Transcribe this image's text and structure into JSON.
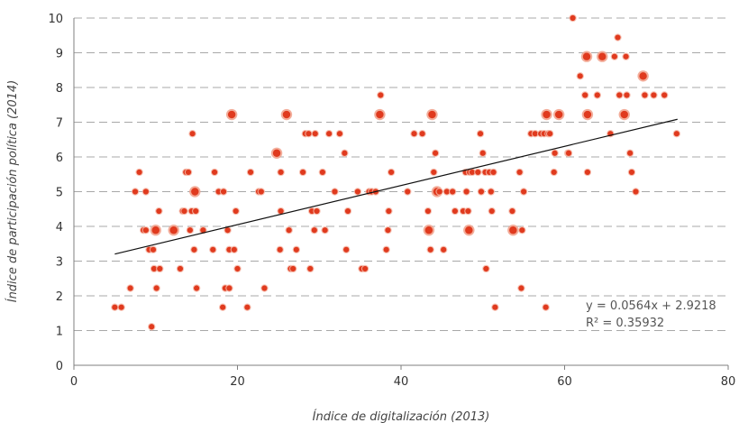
{
  "chart_data": {
    "type": "scatter",
    "xlabel": "Índice de digitalización (2013)",
    "ylabel": "Índice de participación política (2014)",
    "xlim": [
      0,
      80
    ],
    "ylim": [
      0,
      10
    ],
    "x_ticks": [
      "0",
      "20",
      "40",
      "60",
      "80"
    ],
    "y_ticks": [
      "0",
      "1",
      "2",
      "3",
      "4",
      "5",
      "6",
      "7",
      "8",
      "9",
      "10"
    ],
    "grid": "horizontal dashed",
    "marker_color": "#e03a1e",
    "trendline": {
      "slope": 0.0564,
      "intercept": 2.9218,
      "x_range": [
        5,
        73.8
      ],
      "equation": "y = 0.0564x + 2.9218",
      "r2": "R² = 0.35932"
    },
    "points": [
      {
        "x": 5,
        "y": 1.67
      },
      {
        "x": 5.8,
        "y": 1.67
      },
      {
        "x": 6.9,
        "y": 2.22
      },
      {
        "x": 7.5,
        "y": 5
      },
      {
        "x": 8,
        "y": 5.56
      },
      {
        "x": 8.5,
        "y": 3.89
      },
      {
        "x": 8.8,
        "y": 3.89
      },
      {
        "x": 8.8,
        "y": 5
      },
      {
        "x": 9.2,
        "y": 3.33
      },
      {
        "x": 9.5,
        "y": 1.11
      },
      {
        "x": 9.7,
        "y": 3.33
      },
      {
        "x": 9.8,
        "y": 2.78
      },
      {
        "x": 10,
        "y": 3.89
      },
      {
        "x": 10.1,
        "y": 2.22
      },
      {
        "x": 10.4,
        "y": 4.44
      },
      {
        "x": 10.5,
        "y": 2.78
      },
      {
        "x": 12.2,
        "y": 3.89
      },
      {
        "x": 13,
        "y": 2.78
      },
      {
        "x": 13.3,
        "y": 4.44
      },
      {
        "x": 13.5,
        "y": 4.44
      },
      {
        "x": 13.7,
        "y": 5.56
      },
      {
        "x": 14,
        "y": 5.56
      },
      {
        "x": 14.2,
        "y": 3.89
      },
      {
        "x": 14.4,
        "y": 4.44
      },
      {
        "x": 14.5,
        "y": 6.67
      },
      {
        "x": 14.7,
        "y": 3.33
      },
      {
        "x": 14.8,
        "y": 5
      },
      {
        "x": 14.9,
        "y": 4.44
      },
      {
        "x": 15,
        "y": 2.22
      },
      {
        "x": 15.8,
        "y": 3.89
      },
      {
        "x": 17,
        "y": 3.33
      },
      {
        "x": 17.2,
        "y": 5.56
      },
      {
        "x": 17.7,
        "y": 5
      },
      {
        "x": 18.2,
        "y": 1.67
      },
      {
        "x": 18.3,
        "y": 5
      },
      {
        "x": 18.5,
        "y": 2.22
      },
      {
        "x": 18.8,
        "y": 3.89
      },
      {
        "x": 19,
        "y": 2.22
      },
      {
        "x": 19,
        "y": 3.33
      },
      {
        "x": 19.3,
        "y": 7.22
      },
      {
        "x": 19.6,
        "y": 3.33
      },
      {
        "x": 19.8,
        "y": 4.44
      },
      {
        "x": 20,
        "y": 2.78
      },
      {
        "x": 21.2,
        "y": 1.67
      },
      {
        "x": 21.6,
        "y": 5.56
      },
      {
        "x": 22.6,
        "y": 5
      },
      {
        "x": 22.9,
        "y": 5
      },
      {
        "x": 23.3,
        "y": 2.22
      },
      {
        "x": 24.8,
        "y": 6.11
      },
      {
        "x": 25.2,
        "y": 3.33
      },
      {
        "x": 25.3,
        "y": 4.44
      },
      {
        "x": 25.3,
        "y": 5.56
      },
      {
        "x": 26,
        "y": 7.22
      },
      {
        "x": 26.3,
        "y": 3.89
      },
      {
        "x": 26.5,
        "y": 2.78
      },
      {
        "x": 26.8,
        "y": 2.78
      },
      {
        "x": 27.2,
        "y": 3.33
      },
      {
        "x": 28,
        "y": 5.56
      },
      {
        "x": 28.3,
        "y": 6.67
      },
      {
        "x": 28.7,
        "y": 6.67
      },
      {
        "x": 28.9,
        "y": 2.78
      },
      {
        "x": 29.1,
        "y": 4.44
      },
      {
        "x": 29.4,
        "y": 3.89
      },
      {
        "x": 29.5,
        "y": 6.67
      },
      {
        "x": 29.7,
        "y": 4.44
      },
      {
        "x": 30.4,
        "y": 5.56
      },
      {
        "x": 30.7,
        "y": 3.89
      },
      {
        "x": 31.2,
        "y": 6.67
      },
      {
        "x": 31.9,
        "y": 5
      },
      {
        "x": 32.5,
        "y": 6.67
      },
      {
        "x": 33.1,
        "y": 6.11
      },
      {
        "x": 33.3,
        "y": 3.33
      },
      {
        "x": 33.5,
        "y": 4.44
      },
      {
        "x": 34.7,
        "y": 5
      },
      {
        "x": 35.2,
        "y": 2.78
      },
      {
        "x": 35.6,
        "y": 2.78
      },
      {
        "x": 36.1,
        "y": 5
      },
      {
        "x": 36.4,
        "y": 5
      },
      {
        "x": 36.9,
        "y": 5
      },
      {
        "x": 37.4,
        "y": 7.22
      },
      {
        "x": 37.5,
        "y": 7.78
      },
      {
        "x": 38.2,
        "y": 3.33
      },
      {
        "x": 38.4,
        "y": 3.89
      },
      {
        "x": 38.5,
        "y": 4.44
      },
      {
        "x": 38.8,
        "y": 5.56
      },
      {
        "x": 40.8,
        "y": 5
      },
      {
        "x": 41.6,
        "y": 6.67
      },
      {
        "x": 42.6,
        "y": 6.67
      },
      {
        "x": 43.3,
        "y": 4.44
      },
      {
        "x": 43.4,
        "y": 3.89
      },
      {
        "x": 43.6,
        "y": 3.33
      },
      {
        "x": 43.8,
        "y": 7.22
      },
      {
        "x": 44,
        "y": 5.56
      },
      {
        "x": 44.2,
        "y": 6.11
      },
      {
        "x": 44.4,
        "y": 5
      },
      {
        "x": 44.7,
        "y": 5
      },
      {
        "x": 45.2,
        "y": 3.33
      },
      {
        "x": 45.6,
        "y": 5
      },
      {
        "x": 46.3,
        "y": 5
      },
      {
        "x": 46.6,
        "y": 4.44
      },
      {
        "x": 47.6,
        "y": 4.44
      },
      {
        "x": 47.9,
        "y": 5.56
      },
      {
        "x": 48,
        "y": 5
      },
      {
        "x": 48.2,
        "y": 4.44
      },
      {
        "x": 48.3,
        "y": 3.89
      },
      {
        "x": 48.4,
        "y": 5.56
      },
      {
        "x": 48.7,
        "y": 5.56
      },
      {
        "x": 49.4,
        "y": 5.56
      },
      {
        "x": 49.7,
        "y": 6.67
      },
      {
        "x": 49.8,
        "y": 5
      },
      {
        "x": 50,
        "y": 6.11
      },
      {
        "x": 50.3,
        "y": 5.56
      },
      {
        "x": 50.4,
        "y": 2.78
      },
      {
        "x": 50.8,
        "y": 5.56
      },
      {
        "x": 51,
        "y": 5
      },
      {
        "x": 51.1,
        "y": 4.44
      },
      {
        "x": 51.3,
        "y": 5.56
      },
      {
        "x": 51.5,
        "y": 1.67
      },
      {
        "x": 53.6,
        "y": 4.44
      },
      {
        "x": 53.7,
        "y": 3.89
      },
      {
        "x": 54.5,
        "y": 5.56
      },
      {
        "x": 54.7,
        "y": 2.22
      },
      {
        "x": 54.8,
        "y": 3.89
      },
      {
        "x": 55,
        "y": 5
      },
      {
        "x": 55.9,
        "y": 6.67
      },
      {
        "x": 56.4,
        "y": 6.67
      },
      {
        "x": 57.1,
        "y": 6.67
      },
      {
        "x": 57.5,
        "y": 6.67
      },
      {
        "x": 57.7,
        "y": 1.67
      },
      {
        "x": 57.8,
        "y": 7.22
      },
      {
        "x": 58,
        "y": 6.67
      },
      {
        "x": 58.2,
        "y": 6.67
      },
      {
        "x": 58.7,
        "y": 5.56
      },
      {
        "x": 58.8,
        "y": 6.11
      },
      {
        "x": 59.3,
        "y": 7.22
      },
      {
        "x": 60.4,
        "y": 6.11
      },
      {
        "x": 60.5,
        "y": 6.11
      },
      {
        "x": 61,
        "y": 10
      },
      {
        "x": 61.9,
        "y": 8.33
      },
      {
        "x": 62.5,
        "y": 7.78
      },
      {
        "x": 62.7,
        "y": 8.89
      },
      {
        "x": 62.8,
        "y": 7.22
      },
      {
        "x": 62.8,
        "y": 5.56
      },
      {
        "x": 64,
        "y": 7.78
      },
      {
        "x": 64.6,
        "y": 8.89
      },
      {
        "x": 65.6,
        "y": 6.67
      },
      {
        "x": 66.1,
        "y": 8.89
      },
      {
        "x": 66.5,
        "y": 9.44
      },
      {
        "x": 66.7,
        "y": 7.78
      },
      {
        "x": 67.3,
        "y": 7.22
      },
      {
        "x": 67.5,
        "y": 8.89
      },
      {
        "x": 67.6,
        "y": 7.78
      },
      {
        "x": 68,
        "y": 6.11
      },
      {
        "x": 68.2,
        "y": 5.56
      },
      {
        "x": 68.7,
        "y": 5
      },
      {
        "x": 69.6,
        "y": 8.33
      },
      {
        "x": 69.8,
        "y": 7.78
      },
      {
        "x": 70.9,
        "y": 7.78
      },
      {
        "x": 72.2,
        "y": 7.78
      },
      {
        "x": 73.7,
        "y": 6.67
      }
    ],
    "large_points": [
      {
        "x": 14.8,
        "y": 5
      },
      {
        "x": 19.3,
        "y": 7.22
      },
      {
        "x": 24.8,
        "y": 6.11
      },
      {
        "x": 26,
        "y": 7.22
      },
      {
        "x": 37.4,
        "y": 7.22
      },
      {
        "x": 43.8,
        "y": 7.22
      },
      {
        "x": 44.4,
        "y": 5
      },
      {
        "x": 59.3,
        "y": 7.22
      },
      {
        "x": 62.7,
        "y": 8.89
      },
      {
        "x": 62.8,
        "y": 7.22
      },
      {
        "x": 64.6,
        "y": 8.89
      },
      {
        "x": 67.3,
        "y": 7.22
      },
      {
        "x": 69.6,
        "y": 8.33
      },
      {
        "x": 57.8,
        "y": 7.22
      },
      {
        "x": 12.2,
        "y": 3.89
      },
      {
        "x": 10,
        "y": 3.89
      },
      {
        "x": 48.3,
        "y": 3.89
      },
      {
        "x": 53.7,
        "y": 3.89
      },
      {
        "x": 43.4,
        "y": 3.89
      }
    ]
  }
}
